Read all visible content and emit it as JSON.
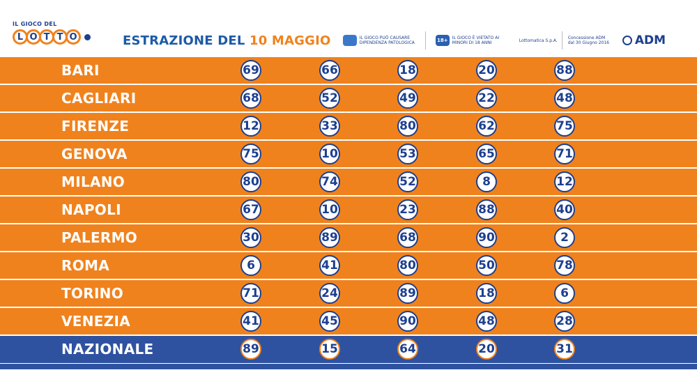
{
  "logo": {
    "small_text": "IL GIOCO DEL",
    "letters": [
      "L",
      "O",
      "T",
      "T",
      "O"
    ]
  },
  "title": {
    "prefix": "ESTRAZIONE DEL",
    "date": "10 MAGGIO"
  },
  "badges": [
    {
      "icon": "dependency-icon",
      "text": "IL GIOCO PUÒ CAUSARE DIPENDENZA PATOLOGICA"
    },
    {
      "icon": "18-plus-icon",
      "icon_text": "18+",
      "text": "IL GIOCO È VIETATO AI MINORI DI 18 ANNI"
    },
    {
      "text": "Lottomatica S.p.A."
    },
    {
      "text": "Concessione ADM dal 30 Giugno 2016"
    }
  ],
  "adm": {
    "label": "ADM"
  },
  "rows": [
    {
      "city": "BARI",
      "numbers": [
        "69",
        "66",
        "18",
        "20",
        "88"
      ]
    },
    {
      "city": "CAGLIARI",
      "numbers": [
        "68",
        "52",
        "49",
        "22",
        "48"
      ]
    },
    {
      "city": "FIRENZE",
      "numbers": [
        "12",
        "33",
        "80",
        "62",
        "75"
      ]
    },
    {
      "city": "GENOVA",
      "numbers": [
        "75",
        "10",
        "53",
        "65",
        "71"
      ]
    },
    {
      "city": "MILANO",
      "numbers": [
        "80",
        "74",
        "52",
        "8",
        "12"
      ]
    },
    {
      "city": "NAPOLI",
      "numbers": [
        "67",
        "10",
        "23",
        "88",
        "40"
      ]
    },
    {
      "city": "PALERMO",
      "numbers": [
        "30",
        "89",
        "68",
        "90",
        "2"
      ]
    },
    {
      "city": "ROMA",
      "numbers": [
        "6",
        "41",
        "80",
        "50",
        "78"
      ]
    },
    {
      "city": "TORINO",
      "numbers": [
        "71",
        "24",
        "89",
        "18",
        "6"
      ]
    },
    {
      "city": "VENEZIA",
      "numbers": [
        "41",
        "45",
        "90",
        "48",
        "28"
      ]
    },
    {
      "city": "NAZIONALE",
      "numbers": [
        "89",
        "15",
        "64",
        "20",
        "31"
      ]
    }
  ],
  "colors": {
    "orange": "#f0821d",
    "blue": "#2f52a0",
    "navy": "#1d3f8f"
  }
}
